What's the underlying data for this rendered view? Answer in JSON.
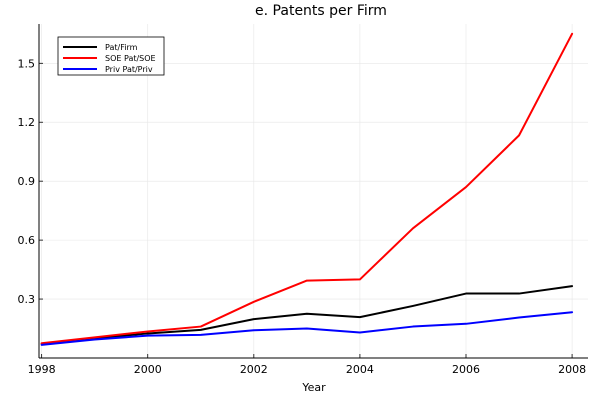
{
  "chart_data": {
    "type": "line",
    "title": "e. Patents per Firm",
    "xlabel": "Year",
    "ylabel": "",
    "x": [
      1998,
      1999,
      2000,
      2001,
      2002,
      2003,
      2004,
      2005,
      2006,
      2007,
      2008
    ],
    "xlim": [
      1997.95,
      2008.3
    ],
    "ylim": [
      0.0,
      1.7
    ],
    "xticks": [
      1998,
      2000,
      2002,
      2004,
      2006,
      2008
    ],
    "yticks": [
      0.3,
      0.6,
      0.9,
      1.2,
      1.5
    ],
    "ytick_labels": [
      "0.3",
      "0.6",
      "0.9",
      "1.2",
      "1.5"
    ],
    "grid": true,
    "legend_position": "top-left",
    "series": [
      {
        "name": "Pat/Firm",
        "color": "#000000",
        "values": [
          0.072,
          0.1,
          0.125,
          0.143,
          0.198,
          0.225,
          0.208,
          0.265,
          0.328,
          0.328,
          0.366
        ]
      },
      {
        "name": "SOE Pat/SOE",
        "color": "#ff0000",
        "values": [
          0.075,
          0.105,
          0.135,
          0.16,
          0.286,
          0.394,
          0.4,
          0.66,
          0.87,
          1.133,
          1.65
        ]
      },
      {
        "name": "Priv Pat/Priv",
        "color": "#0000ff",
        "values": [
          0.067,
          0.094,
          0.114,
          0.118,
          0.141,
          0.15,
          0.13,
          0.16,
          0.174,
          0.206,
          0.233
        ]
      }
    ]
  }
}
